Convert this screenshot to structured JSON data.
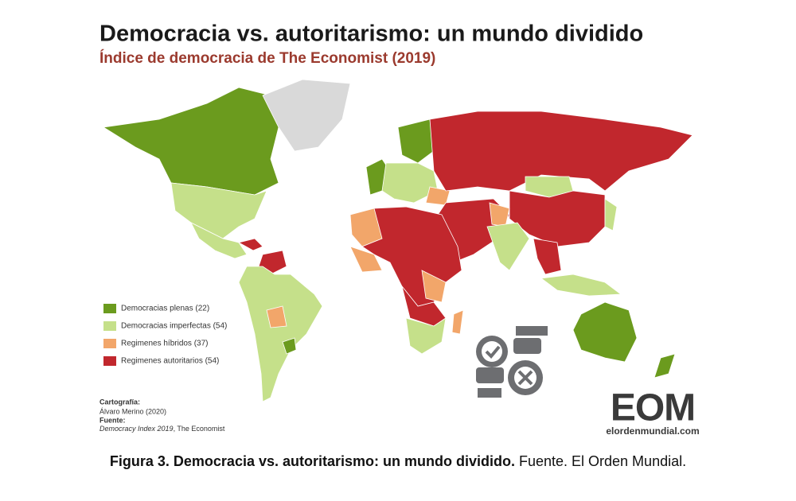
{
  "title": "Democracia vs. autoritarismo: un mundo dividido",
  "subtitle": "Índice de democracia de The Economist (2019)",
  "legend": [
    {
      "label": "Democracias plenas (22)",
      "color": "#6b9b1e"
    },
    {
      "label": "Democracias imperfectas (54)",
      "color": "#c5e08a"
    },
    {
      "label": "Regimenes híbridos (37)",
      "color": "#f2a66a"
    },
    {
      "label": "Regimenes autoritarios (54)",
      "color": "#c1272d"
    }
  ],
  "credits": {
    "cartography_heading": "Cartografía:",
    "cartography": "Álvaro Merino (2020)",
    "source_heading": "Fuente:",
    "source_title": "Democracy Index 2019",
    "source_rest": ", The Economist"
  },
  "logo": {
    "mark": "EOM",
    "url": "elordenmundial.com"
  },
  "caption": {
    "bold": "Figura 3. Democracia vs. autoritarismo: un mundo dividido.",
    "rest": "Fuente. El Orden Mundial."
  }
}
